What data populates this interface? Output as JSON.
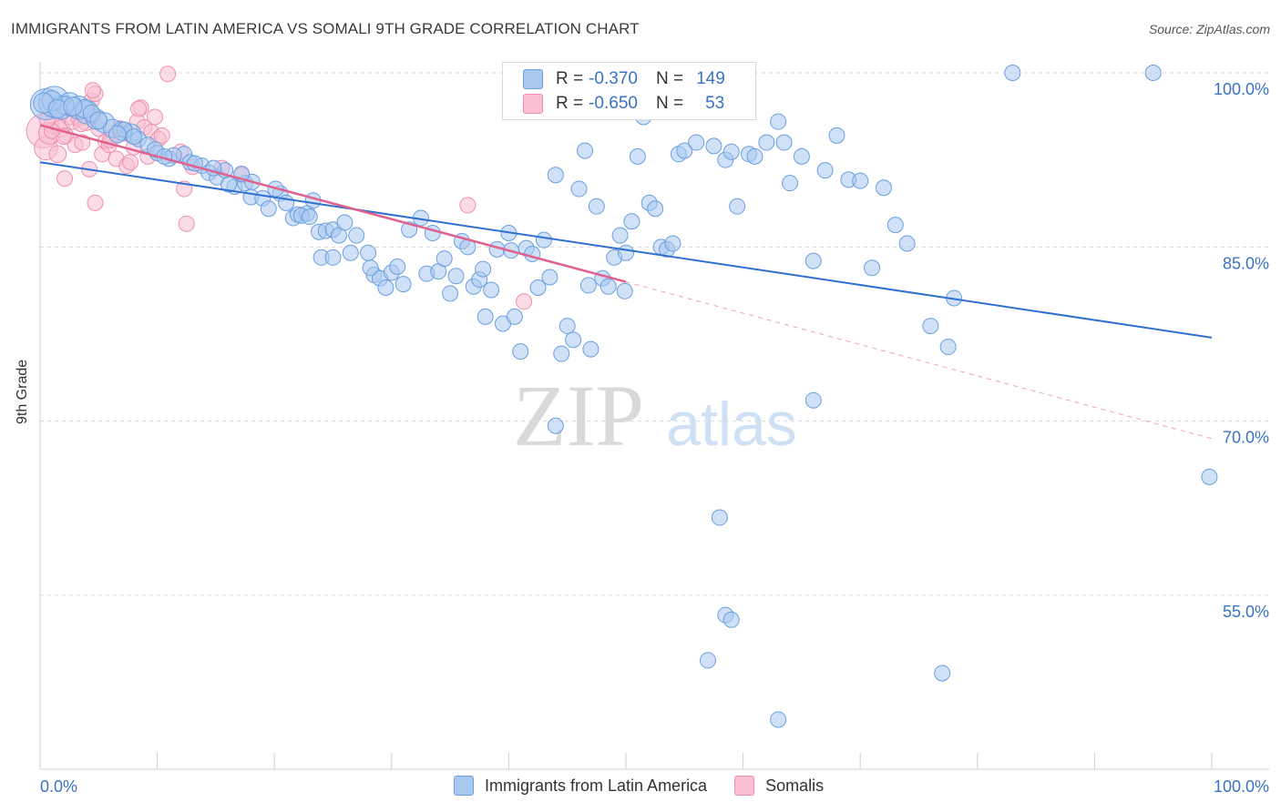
{
  "title": "IMMIGRANTS FROM LATIN AMERICA VS SOMALI 9TH GRADE CORRELATION CHART",
  "source": "Source: ZipAtlas.com",
  "watermark": {
    "zip": "ZIP",
    "atlas": "atlas"
  },
  "colors": {
    "blue_fill": "#a9c8f0",
    "blue_stroke": "#6a9fe0",
    "blue_line": "#2f6fd0",
    "pink_fill": "#f8c0d2",
    "pink_stroke": "#ee8fb0",
    "pink_line": "#e0608e",
    "axis_text": "#3a72c4",
    "grid": "#d9d9d9"
  },
  "legend": {
    "rows": [
      {
        "r_label": "R =",
        "r_value": "-0.370",
        "n_label": "N =",
        "n_value": "149",
        "color": "#a9c8f0",
        "border": "#6a9fe0"
      },
      {
        "r_label": "R =",
        "r_value": "-0.650",
        "n_label": "N =",
        "n_value": "53",
        "color": "#f8c0d2",
        "border": "#ee8fb0"
      }
    ]
  },
  "bottom_legend": [
    {
      "label": "Immigrants from Latin America",
      "color": "#a9c8f0",
      "border": "#6a9fe0"
    },
    {
      "label": "Somalis",
      "color": "#f8c0d2",
      "border": "#ee8fb0"
    }
  ],
  "chart_data": {
    "type": "scatter",
    "title": "IMMIGRANTS FROM LATIN AMERICA VS SOMALI 9TH GRADE CORRELATION CHART",
    "xlabel": "",
    "ylabel": "9th Grade",
    "xlim": [
      0,
      100
    ],
    "ylim": [
      37,
      101.5
    ],
    "x_tick_labels": [
      "0.0%",
      "100.0%"
    ],
    "y_ticks": [
      100,
      85,
      70,
      55
    ],
    "y_tick_labels": [
      "100.0%",
      "85.0%",
      "70.0%",
      "55.0%"
    ],
    "grid": true,
    "legend_position": "top-center",
    "series": [
      {
        "name": "Immigrants from Latin America",
        "trend": {
          "x": [
            0,
            100
          ],
          "y": [
            92.3,
            77.2
          ]
        },
        "points": [
          [
            0.5,
            97.3,
            2
          ],
          [
            1.2,
            97.5,
            2
          ],
          [
            1.8,
            97.0,
            1.5
          ],
          [
            2.5,
            97.3,
            1.5
          ],
          [
            3.3,
            97.0,
            1.5
          ],
          [
            4.0,
            96.6,
            1.5
          ],
          [
            4.8,
            96.0,
            1.3
          ],
          [
            5.5,
            95.7,
            1.3
          ],
          [
            6.2,
            95.2,
            1.2
          ],
          [
            7.0,
            95.0,
            1.2
          ],
          [
            7.8,
            94.8,
            1.2
          ],
          [
            8.4,
            94.3,
            1
          ],
          [
            9.2,
            93.8,
            1
          ],
          [
            10.0,
            93.1,
            1
          ],
          [
            11.0,
            92.6,
            1
          ],
          [
            12.3,
            93.0,
            1
          ],
          [
            12.8,
            92.3,
            1
          ],
          [
            13.8,
            92.0,
            1
          ],
          [
            14.4,
            91.4,
            1
          ],
          [
            15.1,
            91.0,
            1
          ],
          [
            15.8,
            91.6,
            1
          ],
          [
            16.6,
            90.2,
            1
          ],
          [
            17.5,
            90.5,
            1
          ],
          [
            18.1,
            90.6,
            1
          ],
          [
            18.0,
            89.3,
            1
          ],
          [
            19.0,
            89.2,
            1
          ],
          [
            19.5,
            88.3,
            1
          ],
          [
            20.5,
            89.6,
            1
          ],
          [
            21.0,
            88.8,
            1
          ],
          [
            21.6,
            87.5,
            1
          ],
          [
            22.0,
            87.8,
            1
          ],
          [
            22.8,
            87.9,
            1
          ],
          [
            23.3,
            89.0,
            1
          ],
          [
            23.8,
            86.3,
            1
          ],
          [
            24.4,
            86.4,
            1
          ],
          [
            25.0,
            86.5,
            1
          ],
          [
            25.5,
            86.0,
            1
          ],
          [
            24.0,
            84.1,
            1
          ],
          [
            25.0,
            84.1,
            1
          ],
          [
            26.5,
            84.5,
            1
          ],
          [
            27.0,
            86.0,
            1
          ],
          [
            28.0,
            84.5,
            1
          ],
          [
            28.5,
            82.6,
            1
          ],
          [
            29.0,
            82.3,
            1
          ],
          [
            29.5,
            81.5,
            1
          ],
          [
            30.0,
            82.8,
            1
          ],
          [
            30.5,
            83.3,
            1
          ],
          [
            31.5,
            86.5,
            1
          ],
          [
            32.5,
            87.5,
            1
          ],
          [
            33.0,
            82.7,
            1
          ],
          [
            33.5,
            86.2,
            1
          ],
          [
            34.0,
            82.9,
            1
          ],
          [
            34.5,
            84.0,
            1
          ],
          [
            35.0,
            81.0,
            1
          ],
          [
            35.5,
            82.5,
            1
          ],
          [
            36.0,
            85.5,
            1
          ],
          [
            36.5,
            85.0,
            1
          ],
          [
            37.0,
            81.6,
            1
          ],
          [
            37.5,
            82.2,
            1
          ],
          [
            38.0,
            79.0,
            1
          ],
          [
            38.5,
            81.3,
            1
          ],
          [
            39.0,
            84.8,
            1
          ],
          [
            39.5,
            78.4,
            1
          ],
          [
            40.0,
            86.2,
            1
          ],
          [
            40.5,
            79.0,
            1
          ],
          [
            41.0,
            76.0,
            1
          ],
          [
            41.5,
            84.9,
            1
          ],
          [
            42.0,
            84.4,
            1
          ],
          [
            42.5,
            81.5,
            1
          ],
          [
            43.0,
            85.6,
            1
          ],
          [
            43.5,
            82.4,
            1
          ],
          [
            44.0,
            91.2,
            1
          ],
          [
            44.5,
            75.8,
            1
          ],
          [
            45.0,
            78.2,
            1
          ],
          [
            45.5,
            77.0,
            1
          ],
          [
            46.0,
            90.0,
            1
          ],
          [
            46.5,
            93.3,
            1
          ],
          [
            47.0,
            76.2,
            1
          ],
          [
            47.5,
            88.5,
            1
          ],
          [
            48.0,
            82.3,
            1
          ],
          [
            49.0,
            84.1,
            1
          ],
          [
            49.5,
            86.0,
            1
          ],
          [
            50.0,
            84.5,
            1
          ],
          [
            50.5,
            87.2,
            1
          ],
          [
            51.0,
            92.8,
            1
          ],
          [
            51.5,
            96.2,
            1
          ],
          [
            52.0,
            88.8,
            1
          ],
          [
            52.5,
            88.3,
            1
          ],
          [
            53.0,
            85.0,
            1
          ],
          [
            53.5,
            84.8,
            1
          ],
          [
            54.0,
            85.3,
            1
          ],
          [
            54.5,
            93.0,
            1
          ],
          [
            55.0,
            93.3,
            1
          ],
          [
            56.0,
            94.0,
            1
          ],
          [
            57.5,
            93.7,
            1
          ],
          [
            58.5,
            92.5,
            1
          ],
          [
            59.0,
            93.2,
            1
          ],
          [
            59.5,
            88.5,
            1
          ],
          [
            60.5,
            93.0,
            1
          ],
          [
            61.0,
            92.8,
            1
          ],
          [
            62.0,
            94.0,
            1
          ],
          [
            63.0,
            95.8,
            1
          ],
          [
            63.5,
            94.0,
            1
          ],
          [
            64.0,
            90.5,
            1
          ],
          [
            65.0,
            92.8,
            1
          ],
          [
            66.0,
            83.8,
            1
          ],
          [
            67.0,
            91.6,
            1
          ],
          [
            68.0,
            94.6,
            1
          ],
          [
            69.0,
            90.8,
            1
          ],
          [
            70.0,
            90.7,
            1
          ],
          [
            71.0,
            83.2,
            1
          ],
          [
            72.0,
            90.1,
            1
          ],
          [
            73.0,
            86.9,
            1
          ],
          [
            74.0,
            85.3,
            1
          ],
          [
            76.0,
            78.2,
            1
          ],
          [
            77.5,
            76.4,
            1
          ],
          [
            78.0,
            80.6,
            1
          ],
          [
            83.0,
            100.0,
            1
          ],
          [
            95.0,
            100.0,
            1
          ],
          [
            99.8,
            65.2,
            1
          ],
          [
            66.0,
            71.8,
            1
          ],
          [
            44.0,
            69.6,
            1
          ],
          [
            58.0,
            61.7,
            1
          ],
          [
            58.5,
            53.3,
            1
          ],
          [
            59.0,
            52.9,
            1
          ],
          [
            57.0,
            49.4,
            1
          ],
          [
            77.0,
            48.3,
            1
          ],
          [
            63.0,
            44.3,
            1
          ],
          [
            48.5,
            81.6,
            1
          ],
          [
            40.2,
            84.7,
            1
          ],
          [
            26.0,
            87.1,
            1
          ],
          [
            22.3,
            87.7,
            1
          ],
          [
            17.2,
            91.3,
            1
          ],
          [
            13.2,
            92.2,
            1
          ],
          [
            11.4,
            92.9,
            1
          ],
          [
            9.8,
            93.4,
            1
          ],
          [
            7.2,
            95.1,
            1
          ],
          [
            3.8,
            96.9,
            1.2
          ],
          [
            2.1,
            97.2,
            1.2
          ],
          [
            1.0,
            97.6,
            1.3
          ],
          [
            0.3,
            97.4,
            1.3
          ],
          [
            1.5,
            96.9,
            1.2
          ],
          [
            2.8,
            97.1,
            1.2
          ],
          [
            4.4,
            96.5,
            1.1
          ],
          [
            5.0,
            95.9,
            1.1
          ],
          [
            6.6,
            94.7,
            1.1
          ],
          [
            8.0,
            94.5,
            1
          ],
          [
            10.6,
            92.8,
            1
          ],
          [
            14.8,
            91.8,
            1
          ],
          [
            16.1,
            90.4,
            1
          ],
          [
            20.1,
            90.0,
            1
          ],
          [
            23.0,
            87.6,
            1
          ],
          [
            28.2,
            83.2,
            1
          ],
          [
            31.0,
            81.8,
            1
          ],
          [
            37.8,
            83.1,
            1
          ],
          [
            46.8,
            81.7,
            1
          ],
          [
            49.9,
            81.2,
            1
          ]
        ]
      },
      {
        "name": "Somalis",
        "trend": {
          "x": [
            0,
            50
          ],
          "y": [
            95.5,
            82.0
          ]
        },
        "trend_dashed": {
          "x": [
            50,
            100
          ],
          "y": [
            82.0,
            68.5
          ]
        },
        "points": [
          [
            0.3,
            95.0,
            2.2
          ],
          [
            0.5,
            93.5,
            1.5
          ],
          [
            0.8,
            94.8,
            1.4
          ],
          [
            1.2,
            95.6,
            1.3
          ],
          [
            1.5,
            93.0,
            1.1
          ],
          [
            1.8,
            95.2,
            1.1
          ],
          [
            2.2,
            94.6,
            1
          ],
          [
            2.5,
            96.2,
            1
          ],
          [
            2.8,
            95.8,
            1
          ],
          [
            3.0,
            93.8,
            1
          ],
          [
            3.3,
            96.1,
            1
          ],
          [
            3.6,
            94.0,
            1
          ],
          [
            3.9,
            95.7,
            1
          ],
          [
            4.2,
            91.7,
            1
          ],
          [
            4.4,
            97.6,
            1
          ],
          [
            4.7,
            98.2,
            1
          ],
          [
            5.0,
            95.2,
            1
          ],
          [
            5.3,
            93.0,
            1
          ],
          [
            5.6,
            94.1,
            1
          ],
          [
            5.9,
            93.8,
            1
          ],
          [
            6.2,
            94.5,
            1
          ],
          [
            6.5,
            92.6,
            1
          ],
          [
            6.8,
            95.2,
            1
          ],
          [
            7.1,
            94.8,
            1
          ],
          [
            7.4,
            92.0,
            1
          ],
          [
            7.7,
            92.3,
            1
          ],
          [
            8.0,
            93.6,
            1
          ],
          [
            8.3,
            95.8,
            1
          ],
          [
            8.6,
            97.0,
            1
          ],
          [
            8.9,
            95.3,
            1
          ],
          [
            9.2,
            92.8,
            1
          ],
          [
            9.5,
            94.9,
            1
          ],
          [
            9.8,
            96.2,
            1
          ],
          [
            10.1,
            94.3,
            1
          ],
          [
            10.4,
            94.6,
            1
          ],
          [
            4.5,
            98.5,
            1
          ],
          [
            3.5,
            95.6,
            1
          ],
          [
            2.0,
            94.5,
            1
          ],
          [
            1.0,
            95.0,
            1
          ],
          [
            0.6,
            96.0,
            1
          ],
          [
            10.9,
            99.9,
            1
          ],
          [
            8.4,
            96.9,
            1
          ],
          [
            4.7,
            88.8,
            1
          ],
          [
            2.1,
            90.9,
            1
          ],
          [
            12.3,
            90.0,
            1
          ],
          [
            12.5,
            87.0,
            1
          ],
          [
            15.5,
            91.8,
            1
          ],
          [
            17.2,
            91.2,
            1
          ],
          [
            13.0,
            91.9,
            1
          ],
          [
            12.0,
            93.2,
            1
          ],
          [
            36.5,
            88.6,
            1
          ],
          [
            41.3,
            80.3,
            1
          ],
          [
            6.0,
            94.2,
            1
          ]
        ]
      }
    ]
  }
}
